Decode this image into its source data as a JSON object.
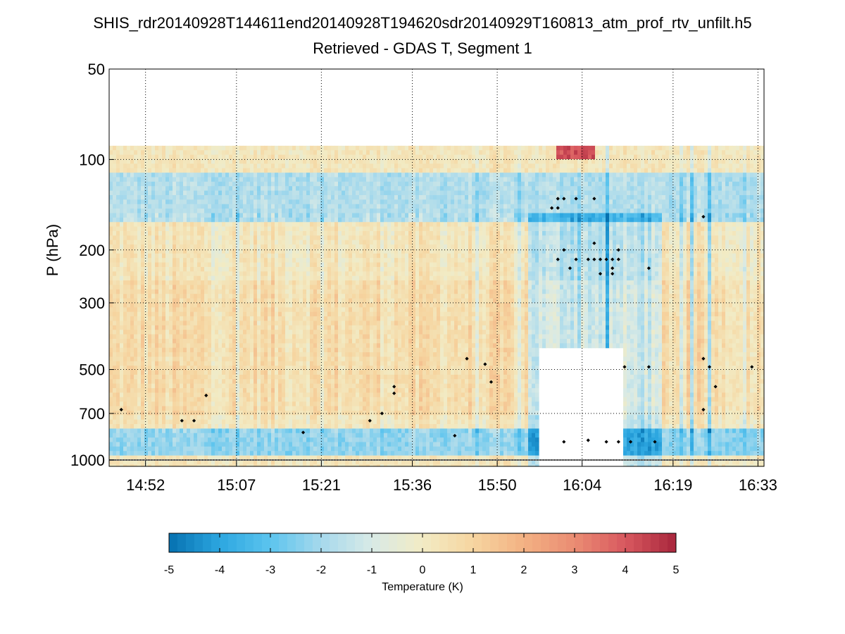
{
  "chart_data": {
    "type": "heatmap",
    "title": "SHIS_rdr20140928T144611end20140928T194620sdr20140929T160813_atm_prof_rtv_unfilt.h5",
    "subtitle": "Retrieved - GDAS T, Segment 1",
    "xlabel": "",
    "ylabel": "P (hPa)",
    "y_scale": "log",
    "y_reversed": true,
    "ylim": [
      50,
      1050
    ],
    "y_ticks": [
      "50",
      "100",
      "200",
      "300",
      "500",
      "700",
      "1000"
    ],
    "y_tick_values": [
      50,
      100,
      200,
      300,
      500,
      700,
      1000
    ],
    "xlim": [
      "14:46",
      "16:34"
    ],
    "x_ticks": [
      "14:52",
      "15:07",
      "15:21",
      "15:36",
      "15:50",
      "16:04",
      "16:19",
      "16:33"
    ],
    "grid": true,
    "colorbar": {
      "label": "Temperature (K)",
      "range": [
        -5,
        5
      ],
      "ticks": [
        "-5",
        "-4",
        "-3",
        "-2",
        "-1",
        "0",
        "1",
        "2",
        "3",
        "4",
        "5"
      ],
      "colormap": [
        "#0571b0",
        "#2ca6e0",
        "#5cc4ee",
        "#a6d9ec",
        "#d8eae6",
        "#f2ebc4",
        "#f6d5a0",
        "#f3b183",
        "#ea8c73",
        "#d8585f",
        "#a8263c"
      ]
    },
    "data_top_pressure_hpa": 90,
    "missing_region": {
      "time_start": "15:57",
      "time_end": "16:11",
      "pressure_top_hpa": 420,
      "note_color": "#ffffff"
    },
    "features": [
      {
        "description_band": "cold",
        "pressure_range_hpa": [
          110,
          160
        ],
        "delta_k": -2
      },
      {
        "description_band": "cold",
        "pressure_range_hpa": [
          780,
          950
        ],
        "delta_k": -2.5
      },
      {
        "description_band": "warm",
        "pressure_range_hpa": [
          90,
          100
        ],
        "time_range": [
          "16:00",
          "16:06"
        ],
        "delta_k": 4
      }
    ],
    "cloud_markers": [
      {
        "t": "14:48",
        "p": 680
      },
      {
        "t": "14:58",
        "p": 740
      },
      {
        "t": "15:00",
        "p": 740
      },
      {
        "t": "15:02",
        "p": 610
      },
      {
        "t": "15:18",
        "p": 810
      },
      {
        "t": "15:29",
        "p": 740
      },
      {
        "t": "15:31",
        "p": 700
      },
      {
        "t": "15:33",
        "p": 570
      },
      {
        "t": "15:33",
        "p": 600
      },
      {
        "t": "15:43",
        "p": 830
      },
      {
        "t": "15:45",
        "p": 460
      },
      {
        "t": "15:48",
        "p": 480
      },
      {
        "t": "15:49",
        "p": 550
      },
      {
        "t": "15:59",
        "p": 145
      },
      {
        "t": "16:00",
        "p": 145
      },
      {
        "t": "16:00",
        "p": 135
      },
      {
        "t": "16:01",
        "p": 135
      },
      {
        "t": "16:00",
        "p": 215
      },
      {
        "t": "16:01",
        "p": 200
      },
      {
        "t": "16:02",
        "p": 230
      },
      {
        "t": "16:03",
        "p": 135
      },
      {
        "t": "16:03",
        "p": 215
      },
      {
        "t": "16:05",
        "p": 215
      },
      {
        "t": "16:06",
        "p": 135
      },
      {
        "t": "16:06",
        "p": 190
      },
      {
        "t": "16:06",
        "p": 215
      },
      {
        "t": "16:07",
        "p": 240
      },
      {
        "t": "16:07",
        "p": 215
      },
      {
        "t": "16:08",
        "p": 215
      },
      {
        "t": "16:09",
        "p": 215
      },
      {
        "t": "16:09",
        "p": 230
      },
      {
        "t": "16:09",
        "p": 240
      },
      {
        "t": "16:10",
        "p": 200
      },
      {
        "t": "16:10",
        "p": 215
      },
      {
        "t": "16:11",
        "p": 490
      },
      {
        "t": "16:15",
        "p": 230
      },
      {
        "t": "16:15",
        "p": 490
      },
      {
        "t": "16:01",
        "p": 870
      },
      {
        "t": "16:05",
        "p": 860
      },
      {
        "t": "16:08",
        "p": 870
      },
      {
        "t": "16:10",
        "p": 870
      },
      {
        "t": "16:12",
        "p": 870
      },
      {
        "t": "16:16",
        "p": 870
      },
      {
        "t": "16:24",
        "p": 155
      },
      {
        "t": "16:24",
        "p": 680
      },
      {
        "t": "16:24",
        "p": 460
      },
      {
        "t": "16:25",
        "p": 490
      },
      {
        "t": "16:26",
        "p": 570
      },
      {
        "t": "16:32",
        "p": 490
      }
    ]
  }
}
